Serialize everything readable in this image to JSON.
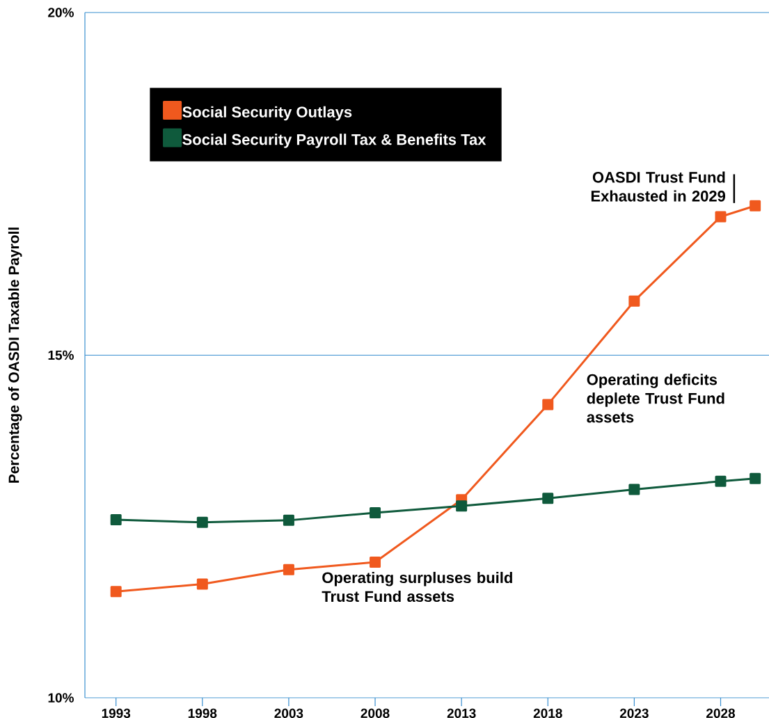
{
  "chart_data": {
    "type": "line",
    "ylabel": "Percentage of OASDI Taxable Payroll",
    "x": [
      1993,
      1998,
      2003,
      2008,
      2013,
      2018,
      2023,
      2028,
      2030
    ],
    "series": [
      {
        "name": "Social Security Outlays",
        "color": "#f0591e",
        "values": [
          11.55,
          11.66,
          11.87,
          11.98,
          12.89,
          14.28,
          15.79,
          17.02,
          17.18
        ]
      },
      {
        "name": "Social Security Payroll Tax & Benefits Tax",
        "color": "#0f5a3c",
        "values": [
          12.6,
          12.56,
          12.59,
          12.7,
          12.8,
          12.91,
          13.04,
          13.16,
          13.2
        ]
      }
    ],
    "xlim": [
      1991.2,
      2030.8
    ],
    "ylim": [
      10,
      20
    ],
    "xticks": [
      1993,
      1998,
      2003,
      2008,
      2013,
      2018,
      2023,
      2028
    ],
    "yticks": [
      {
        "value": 10,
        "label": "10%"
      },
      {
        "value": 15,
        "label": "15%"
      },
      {
        "value": 20,
        "label": "20%"
      }
    ],
    "ref_lines": [
      {
        "axis": "y",
        "value": 15,
        "color": "#3a8fd0"
      }
    ],
    "legend": "top left",
    "marker": "square",
    "line_style": "solid",
    "annotations": [
      "OASDI Trust Fund Exhausted in 2029",
      "Operating deficits deplete Trust Fund assets",
      "Operating surpluses build Trust Fund assets"
    ]
  }
}
